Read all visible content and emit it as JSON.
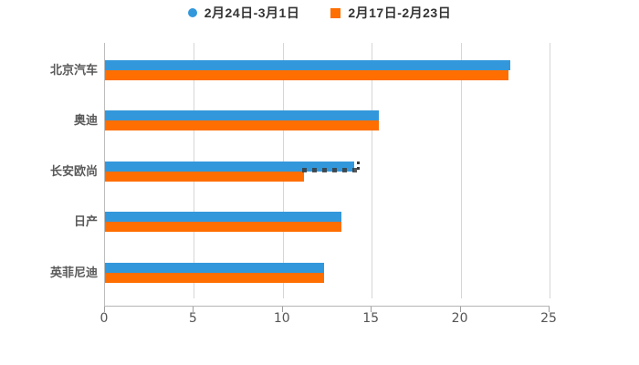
{
  "chart_data": {
    "type": "bar",
    "orientation": "horizontal",
    "title": "",
    "xlabel": "",
    "ylabel": "",
    "categories": [
      "北京汽车",
      "奥迪",
      "长安欧尚",
      "日产",
      "英菲尼迪"
    ],
    "series": [
      {
        "name": "2月24日-3月1日",
        "color": "#3398DB",
        "marker": "circle",
        "values": [
          22.8,
          15.4,
          14.0,
          13.3,
          12.3
        ]
      },
      {
        "name": "2月17日-2月23日",
        "color": "#FF6E00",
        "marker": "square",
        "values": [
          22.7,
          15.4,
          11.2,
          13.3,
          12.3
        ]
      }
    ],
    "xlim": [
      0,
      25
    ],
    "xticks": [
      "0",
      "5",
      "10",
      "15",
      "20",
      "25"
    ],
    "grid": "vertical-gridlines-every-5",
    "legend_position": "top-center"
  },
  "artifacts": {
    "clipped_text_under_bar_category": "长安欧尚"
  },
  "colors": {
    "background": "#ffffff",
    "axis_line": "#b5b5b5",
    "gridline": "#d6d6d6",
    "tick_label": "#555555",
    "category_label": "#595959",
    "legend_text": "#333333"
  }
}
